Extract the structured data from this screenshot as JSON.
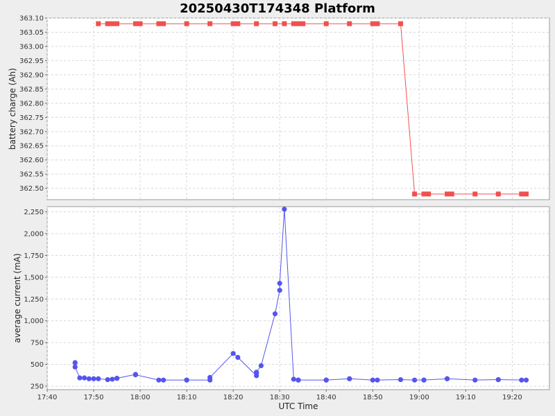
{
  "title": "20250430T174348 Platform",
  "colors": {
    "battery": "#f05050",
    "current": "#5555ee"
  },
  "chart_data": [
    {
      "type": "line",
      "ylabel": "battery charge (Ah)",
      "xlim": [
        "17:40",
        "19:28"
      ],
      "ylim": [
        362.46,
        363.1
      ],
      "yticks": [
        "363.10",
        "363.05",
        "363.00",
        "362.95",
        "362.90",
        "362.85",
        "362.80",
        "362.75",
        "362.70",
        "362.65",
        "362.60",
        "362.55",
        "362.50"
      ],
      "grid": true,
      "series": [
        {
          "marker": "square",
          "x": [
            "17:51",
            "17:53",
            "17:54",
            "17:55",
            "17:59",
            "18:00",
            "18:04",
            "18:05",
            "18:10",
            "18:15",
            "18:20",
            "18:21",
            "18:25",
            "18:29",
            "18:31",
            "18:33",
            "18:34",
            "18:35",
            "18:40",
            "18:45",
            "18:50",
            "18:51",
            "18:56",
            "18:59",
            "19:01",
            "19:02",
            "19:06",
            "19:07",
            "19:12",
            "19:17",
            "19:22",
            "19:23"
          ],
          "y": [
            363.08,
            363.08,
            363.08,
            363.08,
            363.08,
            363.08,
            363.08,
            363.08,
            363.08,
            363.08,
            363.08,
            363.08,
            363.08,
            363.08,
            363.08,
            363.08,
            363.08,
            363.08,
            363.08,
            363.08,
            363.08,
            363.08,
            363.08,
            362.48,
            362.48,
            362.48,
            362.48,
            362.48,
            362.48,
            362.48,
            362.48,
            362.48
          ]
        }
      ]
    },
    {
      "type": "line",
      "xlabel": "UTC Time",
      "ylabel": "average current (mA)",
      "xlim": [
        "17:40",
        "19:28"
      ],
      "ylim": [
        210,
        2310
      ],
      "yticks": [
        "2,250",
        "2,000",
        "1,750",
        "1,500",
        "1,250",
        "1,000",
        "750",
        "500",
        "250"
      ],
      "xticks": [
        "17:40",
        "17:50",
        "18:00",
        "18:10",
        "18:20",
        "18:30",
        "18:40",
        "18:50",
        "19:00",
        "19:10",
        "19:20"
      ],
      "grid": true,
      "series": [
        {
          "marker": "circle",
          "x": [
            "17:46",
            "17:46",
            "17:47",
            "17:48",
            "17:49",
            "17:50",
            "17:51",
            "17:53",
            "17:54",
            "17:55",
            "17:55",
            "17:59",
            "17:59",
            "18:04",
            "18:05",
            "18:10",
            "18:10",
            "18:15",
            "18:15",
            "18:20",
            "18:21",
            "18:25",
            "18:25",
            "18:25",
            "18:26",
            "18:29",
            "18:30",
            "18:30",
            "18:31",
            "18:33",
            "18:34",
            "18:34",
            "18:40",
            "18:40",
            "18:45",
            "18:45",
            "18:50",
            "18:51",
            "18:56",
            "18:59",
            "19:01",
            "19:01",
            "19:06",
            "19:06",
            "19:12",
            "19:17",
            "19:17",
            "19:22",
            "19:23"
          ],
          "y": [
            520,
            470,
            345,
            345,
            335,
            335,
            335,
            325,
            330,
            340,
            340,
            385,
            380,
            320,
            320,
            320,
            320,
            320,
            350,
            625,
            580,
            370,
            400,
            410,
            485,
            1080,
            1350,
            1430,
            2280,
            330,
            320,
            320,
            320,
            320,
            335,
            335,
            320,
            320,
            325,
            320,
            320,
            320,
            335,
            335,
            320,
            325,
            325,
            320,
            320
          ]
        }
      ]
    }
  ]
}
